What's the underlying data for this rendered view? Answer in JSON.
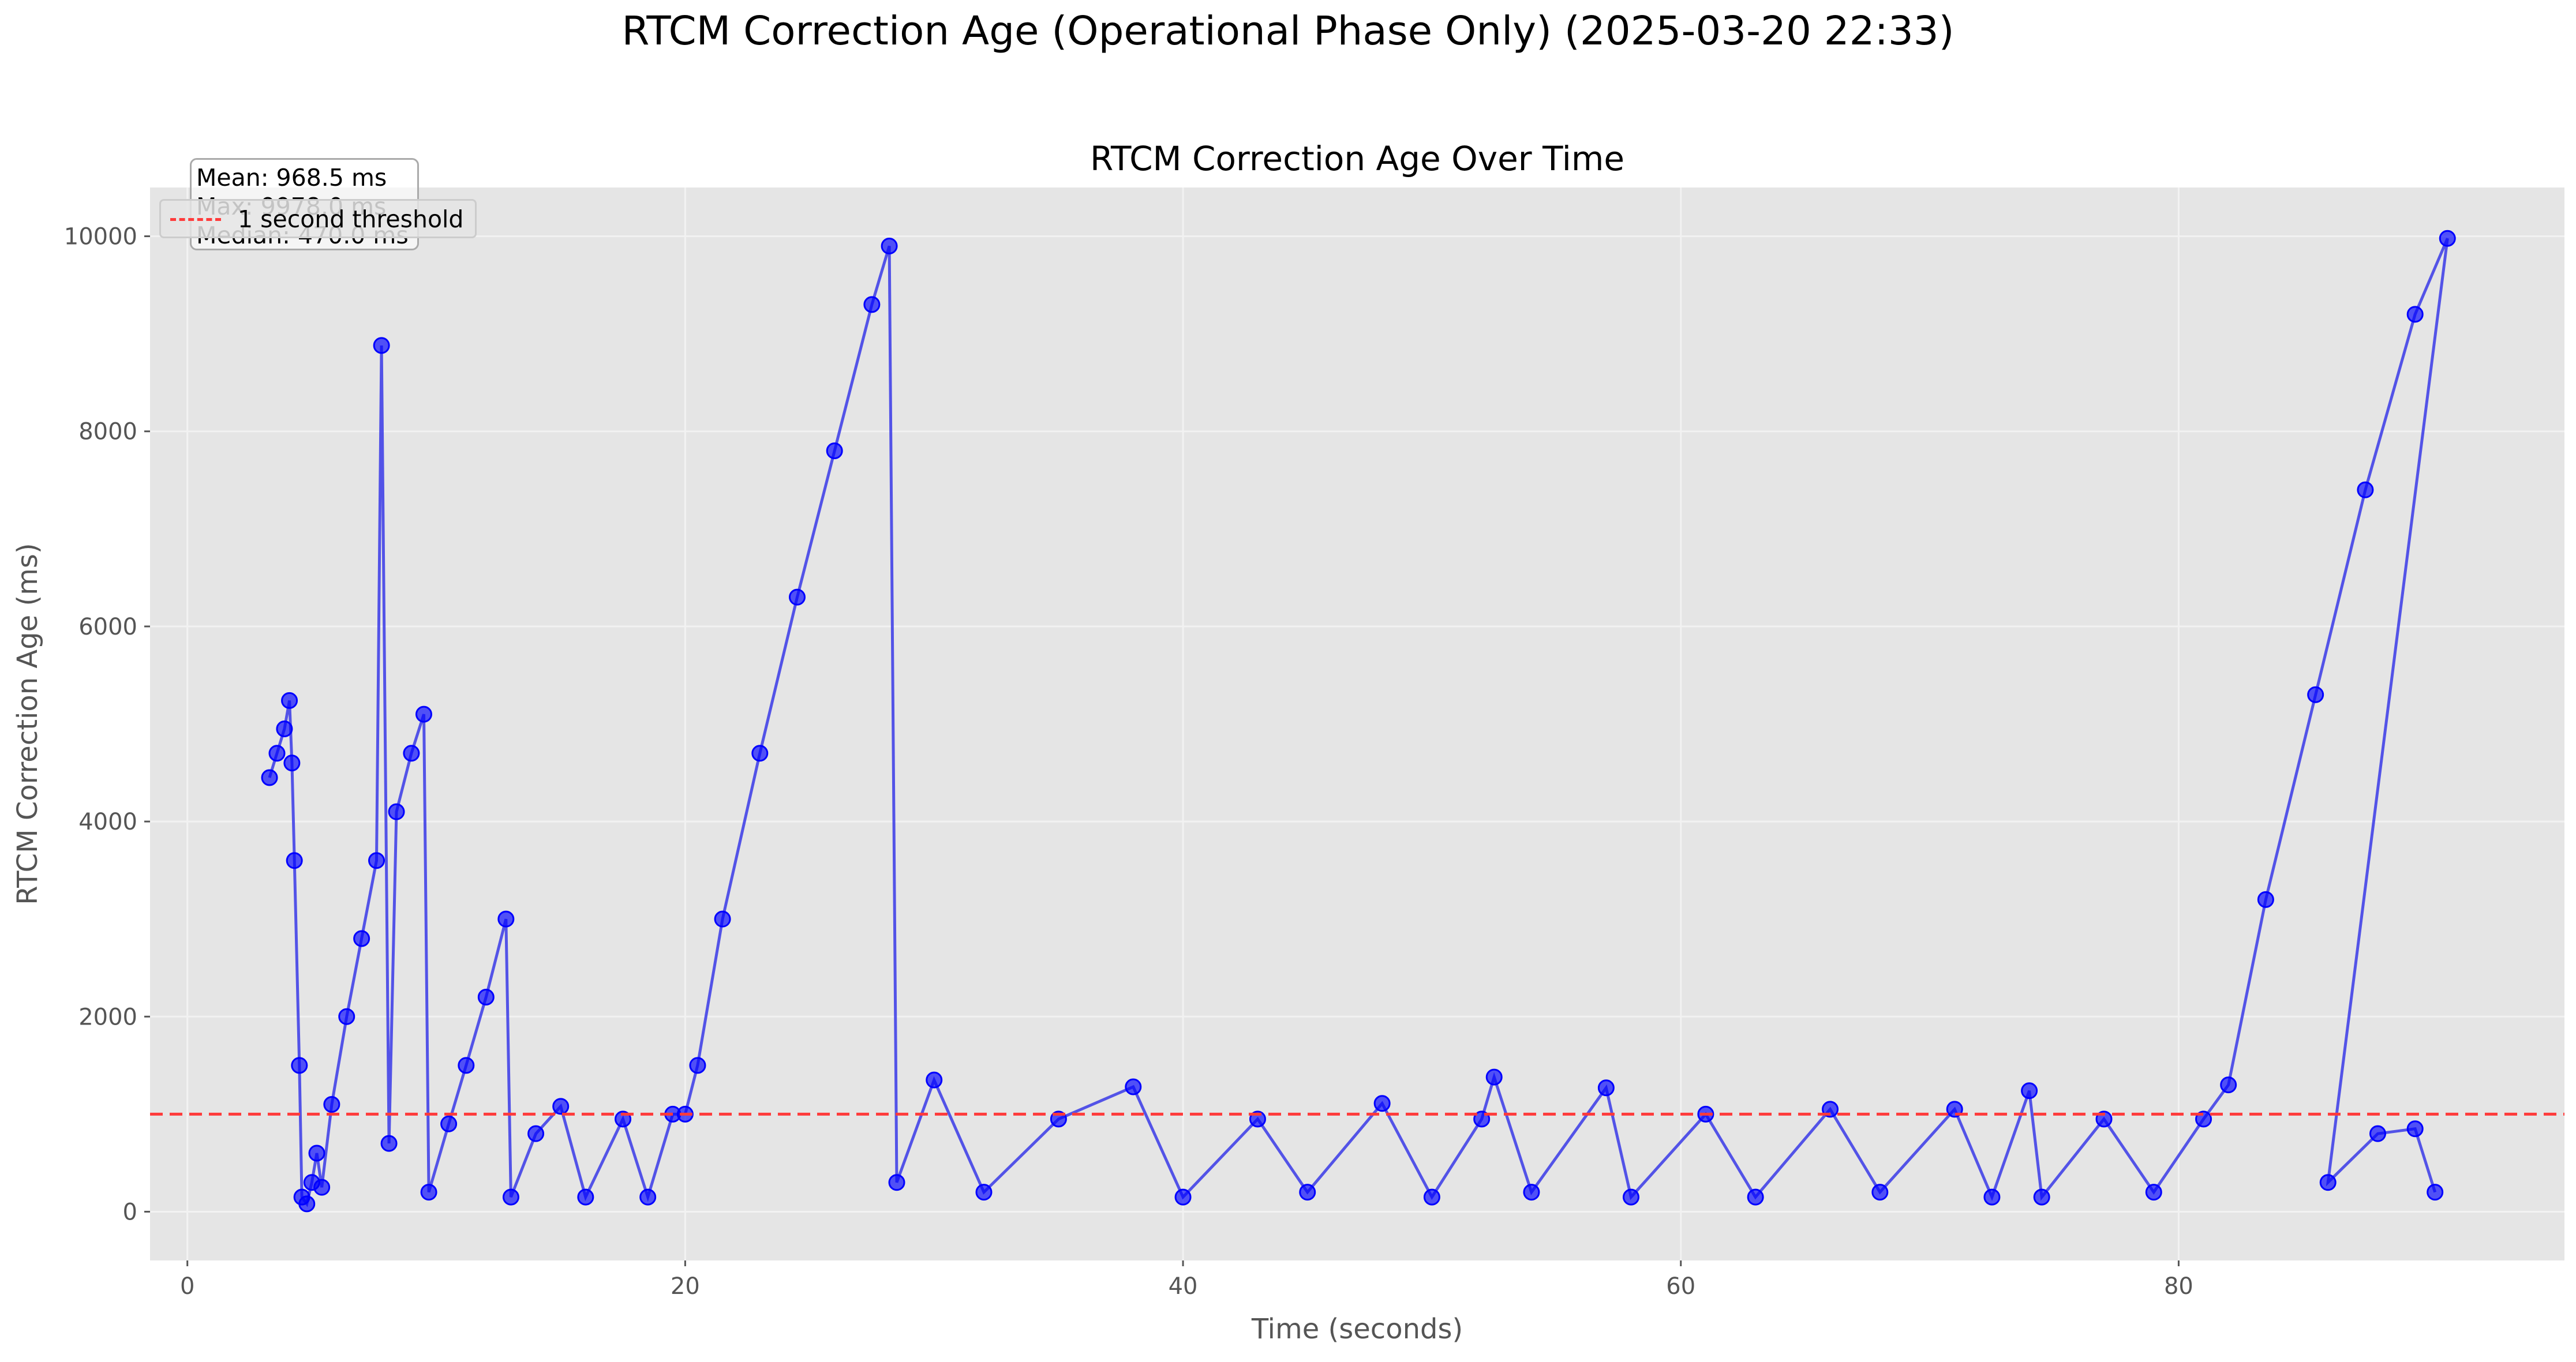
{
  "figure": {
    "title": "RTCM Correction Age (Operational Phase Only) (2025-03-20 22:33)"
  },
  "stats": {
    "mean": "Mean: 968.5 ms",
    "max": "Max: 9978.0 ms",
    "median": "Median: 470.0 ms"
  },
  "legend": {
    "threshold_label": "1 second threshold"
  },
  "colors": {
    "series": "#0000ff",
    "line": "#3a3ae8",
    "threshold": "#ff3b3b",
    "plot_bg": "#e5e5e5",
    "grid": "#f2f2f2"
  },
  "chart_data": {
    "type": "line",
    "title": "RTCM Correction Age Over Time",
    "xlabel": "Time (seconds)",
    "ylabel": "RTCM Correction Age (ms)",
    "xlim": [
      -1.5,
      95.5
    ],
    "ylim": [
      -500,
      10500
    ],
    "xticks": [
      0,
      20,
      40,
      60,
      80
    ],
    "yticks": [
      0,
      2000,
      4000,
      6000,
      8000,
      10000
    ],
    "grid": true,
    "legend_position": "top-left",
    "threshold": {
      "y": 1000,
      "label": "1 second threshold"
    },
    "series": [
      {
        "marker": "circle",
        "points": [
          [
            3.3,
            4450
          ],
          [
            3.6,
            4700
          ],
          [
            3.9,
            4950
          ],
          [
            4.1,
            5240
          ],
          [
            4.2,
            4600
          ],
          [
            4.3,
            3600
          ],
          [
            4.5,
            1500
          ],
          [
            4.6,
            150
          ],
          [
            4.8,
            80
          ],
          [
            5.0,
            300
          ],
          [
            5.2,
            600
          ],
          [
            5.4,
            250
          ],
          [
            5.8,
            1100
          ],
          [
            6.4,
            2000
          ],
          [
            7.0,
            2800
          ],
          [
            7.6,
            3600
          ],
          [
            7.8,
            8880
          ],
          [
            8.1,
            700
          ],
          [
            8.4,
            4100
          ],
          [
            9.0,
            4700
          ],
          [
            9.5,
            5100
          ],
          [
            9.7,
            200
          ],
          [
            10.5,
            900
          ],
          [
            11.2,
            1500
          ],
          [
            12.0,
            2200
          ],
          [
            12.8,
            3000
          ],
          [
            13.0,
            150
          ],
          [
            14.0,
            800
          ],
          [
            15.0,
            1080
          ],
          [
            16.0,
            150
          ],
          [
            17.5,
            950
          ],
          [
            18.5,
            150
          ],
          [
            19.5,
            1000
          ],
          [
            20.0,
            1000
          ],
          [
            20.5,
            1500
          ],
          [
            21.5,
            3000
          ],
          [
            23.0,
            4700
          ],
          [
            24.5,
            6300
          ],
          [
            26.0,
            7800
          ],
          [
            27.5,
            9300
          ],
          [
            28.2,
            9900
          ],
          [
            28.5,
            300
          ],
          [
            30.0,
            1350
          ],
          [
            32.0,
            200
          ],
          [
            35.0,
            950
          ],
          [
            38.0,
            1280
          ],
          [
            40.0,
            150
          ],
          [
            43.0,
            950
          ],
          [
            45.0,
            200
          ],
          [
            48.0,
            1110
          ],
          [
            50.0,
            150
          ],
          [
            52.0,
            950
          ],
          [
            52.5,
            1380
          ],
          [
            54.0,
            200
          ],
          [
            57.0,
            1270
          ],
          [
            58.0,
            150
          ],
          [
            61.0,
            1000
          ],
          [
            63.0,
            150
          ],
          [
            66.0,
            1050
          ],
          [
            68.0,
            200
          ],
          [
            71.0,
            1050
          ],
          [
            72.5,
            150
          ],
          [
            74.0,
            1240
          ],
          [
            74.5,
            150
          ],
          [
            77.0,
            950
          ],
          [
            79.0,
            200
          ],
          [
            81.0,
            950
          ],
          [
            82.0,
            1300
          ],
          [
            83.5,
            3200
          ],
          [
            85.5,
            5300
          ],
          [
            87.5,
            7400
          ],
          [
            89.5,
            9200
          ],
          [
            90.8,
            9978
          ],
          [
            86.0,
            300
          ],
          [
            88.0,
            800
          ],
          [
            89.5,
            850
          ],
          [
            90.3,
            200
          ]
        ]
      }
    ]
  }
}
